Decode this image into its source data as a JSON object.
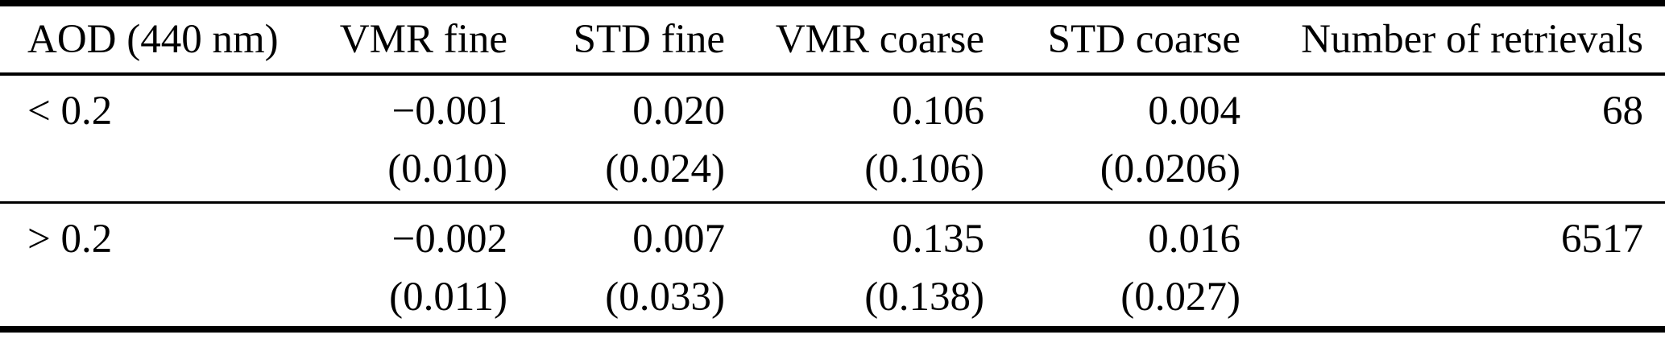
{
  "table": {
    "columns": [
      "AOD (440 nm)",
      "VMR fine",
      "STD fine",
      "VMR coarse",
      "STD coarse",
      "Number of retrievals"
    ],
    "rows": [
      {
        "aod": "< 0.2",
        "vmr_fine": "−0.001",
        "vmr_fine_unc": "(0.010)",
        "std_fine": "0.020",
        "std_fine_unc": "(0.024)",
        "vmr_coarse": "0.106",
        "vmr_coarse_unc": "(0.106)",
        "std_coarse": "0.004",
        "std_coarse_unc": "(0.0206)",
        "n_retrievals": "68"
      },
      {
        "aod": "> 0.2",
        "vmr_fine": "−0.002",
        "vmr_fine_unc": "(0.011)",
        "std_fine": "0.007",
        "std_fine_unc": "(0.033)",
        "vmr_coarse": "0.135",
        "vmr_coarse_unc": "(0.138)",
        "std_coarse": "0.016",
        "std_coarse_unc": "(0.027)",
        "n_retrievals": "6517"
      }
    ],
    "text_color": "#000000",
    "rule_color": "#000000",
    "background_color": "#ffffff"
  }
}
